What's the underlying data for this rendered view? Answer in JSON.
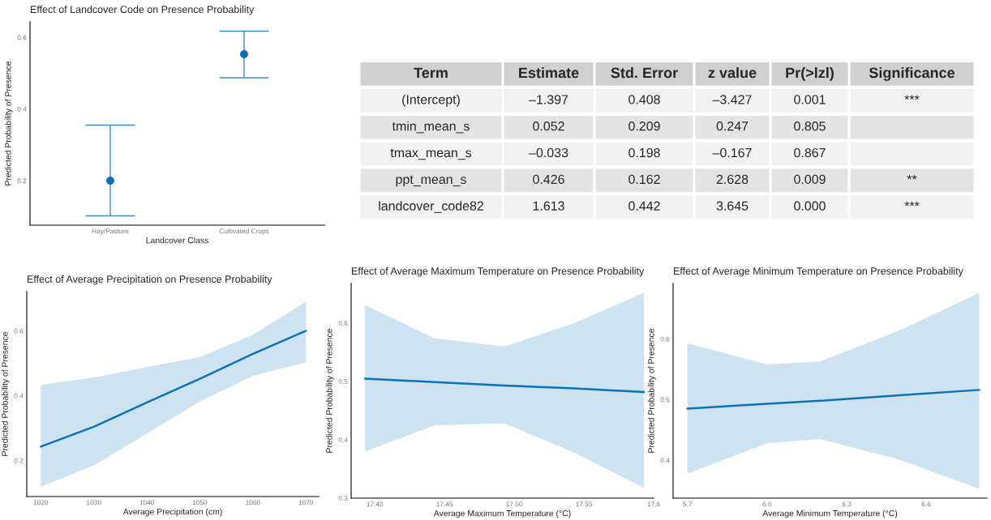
{
  "chart_data": [
    {
      "type": "scatter",
      "title": "Effect of Landcover Code on Presence Probability",
      "xlabel": "Landcover Class",
      "ylabel": "Predicted Probability of Presence",
      "categories": [
        "Hay/Pasture",
        "Cultivated Crops"
      ],
      "ylim": [
        0.076,
        0.643
      ],
      "yticks": [
        0.2,
        0.4,
        0.6
      ],
      "marker": "circle",
      "grid": false,
      "legend": false,
      "series": [
        {
          "color": "#0b6fb3",
          "values": [
            0.2,
            0.553
          ],
          "errors": [
            [
              0.102,
              0.355
            ],
            [
              0.487,
              0.617
            ]
          ]
        }
      ]
    },
    {
      "type": "other",
      "categories": [
        "Term",
        "Estimate",
        "Std. Error",
        "z value",
        "Pr(>lzl)",
        "Significance"
      ],
      "cell_labels": [
        [
          "(Intercept)",
          "–1.397",
          "0.408",
          "–3.427",
          "0.001",
          "***"
        ],
        [
          "tmin_mean_s",
          "0.052",
          "0.209",
          "0.247",
          "0.805",
          null
        ],
        [
          "tmax_mean_s",
          "–0.033",
          "0.198",
          "–0.167",
          "0.867",
          null
        ],
        [
          "ppt_mean_s",
          "0.426",
          "0.162",
          "2.628",
          "0.009",
          "**"
        ],
        [
          "landcover_code82",
          "1.613",
          "0.442",
          "3.645",
          "0.000",
          "***"
        ]
      ]
    },
    {
      "type": "line",
      "title": "Effect of Average Precipitation on Presence Probability",
      "xlabel": "Average Precipitation (cm)",
      "ylabel": "Predicted Probability of Presence",
      "x": [
        1020,
        1030,
        1040,
        1050,
        1060,
        1070
      ],
      "xlim": [
        1017.35,
        1072.4
      ],
      "xticks": [
        1020,
        1030,
        1040,
        1050,
        1060,
        1070
      ],
      "ylim": [
        0.089,
        0.721
      ],
      "yticks": [
        0.2,
        0.4,
        0.6
      ],
      "grid": false,
      "legend": false,
      "series": [
        {
          "color": "#0b72b9",
          "values": [
            0.243,
            0.304,
            0.379,
            0.452,
            0.529,
            0.6
          ],
          "lower": [
            0.119,
            0.185,
            0.283,
            0.382,
            0.461,
            0.503
          ],
          "upper": [
            0.433,
            0.456,
            0.488,
            0.519,
            0.588,
            0.69
          ]
        }
      ]
    },
    {
      "type": "line",
      "title": "Effect of Average Maximum Temperature on Presence Probability",
      "xlabel": "Average Maximum Temperature (°C)",
      "ylabel": "Predicted Probability of Presence",
      "x": [
        17.393,
        17.443,
        17.493,
        17.543,
        17.593
      ],
      "xlim": [
        17.383,
        17.6
      ],
      "xticks": [
        {
          "value": 17.4,
          "label": "17.40"
        },
        {
          "value": 17.45,
          "label": "17.45"
        },
        {
          "value": 17.5,
          "label": "17.50"
        },
        {
          "value": 17.55,
          "label": "17.55"
        },
        17.6
      ],
      "ylim": [
        0.3,
        0.668
      ],
      "yticks": [
        0.3,
        0.4,
        0.5,
        0.6
      ],
      "grid": false,
      "legend": false,
      "series": [
        {
          "color": "#0b72b9",
          "values": [
            0.505,
            0.499,
            0.493,
            0.488,
            0.482
          ],
          "lower": [
            0.38,
            0.425,
            0.428,
            0.378,
            0.318
          ],
          "upper": [
            0.631,
            0.574,
            0.56,
            0.6,
            0.652
          ]
        }
      ]
    },
    {
      "type": "line",
      "title": "Effect of Average Minimum Temperature on Presence Probability",
      "xlabel": "Average Minimum Temperature (°C)",
      "ylabel": "Predicted Probability of Presence",
      "x": [
        5.7,
        6.0,
        6.2,
        6.5,
        6.8
      ],
      "xlim": [
        5.646,
        6.829
      ],
      "xticks": [
        5.7,
        {
          "value": 6.0,
          "label": "6.0"
        },
        6.3,
        6.6
      ],
      "ylim": [
        0.3375,
        0.6915
      ],
      "yticks": [
        0.4,
        0.5,
        0.6
      ],
      "grid": false,
      "legend": false,
      "series": [
        {
          "color": "#0b72b9",
          "values": [
            0.485,
            0.493,
            0.498,
            0.507,
            0.516
          ],
          "lower": [
            0.378,
            0.428,
            0.435,
            0.401,
            0.353
          ],
          "upper": [
            0.593,
            0.558,
            0.563,
            0.614,
            0.676
          ]
        }
      ]
    }
  ]
}
